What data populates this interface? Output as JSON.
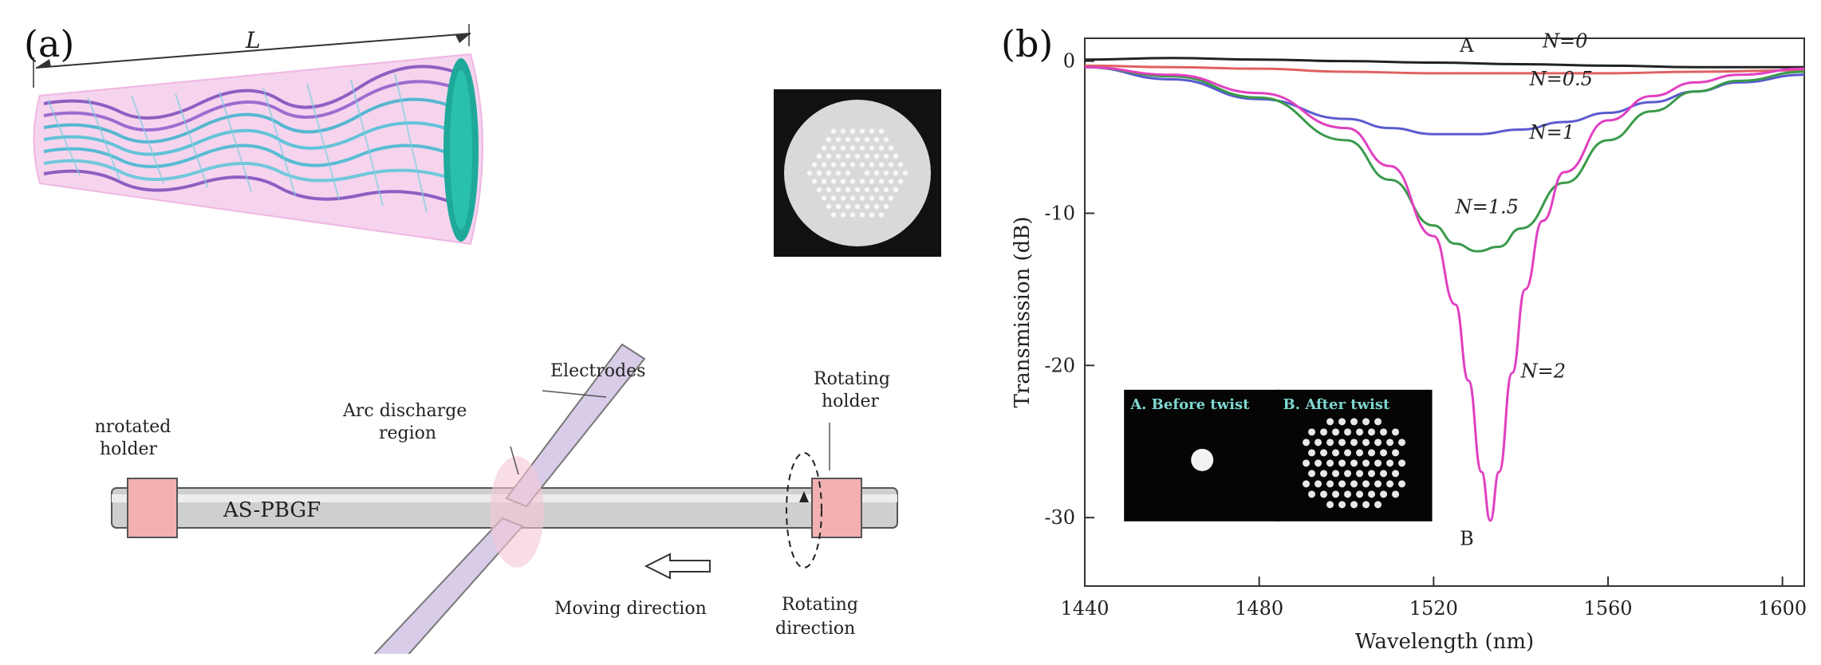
{
  "panel_a": {
    "label": "(a)",
    "length_label": "L",
    "labels": {
      "electrodes": "Electrodes",
      "unrotated_holder": [
        "Unrotated",
        "holder"
      ],
      "arc_region": [
        "Arc discharge",
        "region"
      ],
      "rotating_holder": [
        "Rotating",
        "holder"
      ],
      "fiber": "AS-PBGF",
      "moving": "Moving direction",
      "rotating_dir": [
        "Rotating",
        "direction"
      ]
    }
  },
  "panel_b": {
    "label": "(b)",
    "insets": [
      "A. Before twist",
      "B. After twist"
    ],
    "point_labels": [
      "A",
      "B"
    ]
  },
  "chart_data": {
    "type": "line",
    "xlabel": "Wavelength (nm)",
    "ylabel": "Transmission (dB)",
    "xlim": [
      1440,
      1605
    ],
    "ylim": [
      -34.5,
      1.5
    ],
    "xticks": [
      1440,
      1480,
      1520,
      1560,
      1600
    ],
    "yticks": [
      0,
      -10,
      -20,
      -30
    ],
    "grid": false,
    "series": [
      {
        "name": "N=0",
        "color": "#222222",
        "x": [
          1440,
          1460,
          1480,
          1500,
          1520,
          1540,
          1560,
          1580,
          1605
        ],
        "y": [
          0.1,
          0.2,
          0.1,
          0.0,
          -0.1,
          -0.2,
          -0.3,
          -0.4,
          -0.4
        ]
      },
      {
        "name": "N=0.5",
        "color": "#e06060",
        "x": [
          1440,
          1460,
          1480,
          1500,
          1520,
          1540,
          1560,
          1580,
          1605
        ],
        "y": [
          -0.3,
          -0.4,
          -0.5,
          -0.7,
          -0.8,
          -0.8,
          -0.8,
          -0.7,
          -0.6
        ]
      },
      {
        "name": "N=1",
        "color": "#5a5ad0",
        "x": [
          1440,
          1460,
          1480,
          1500,
          1510,
          1520,
          1530,
          1540,
          1550,
          1560,
          1570,
          1580,
          1590,
          1605
        ],
        "y": [
          -0.4,
          -1.2,
          -2.5,
          -3.8,
          -4.4,
          -4.8,
          -4.8,
          -4.5,
          -4.0,
          -3.4,
          -2.7,
          -2.0,
          -1.4,
          -0.9
        ]
      },
      {
        "name": "N=1.5",
        "color": "#3a9a4a",
        "x": [
          1440,
          1460,
          1480,
          1500,
          1510,
          1520,
          1525,
          1530,
          1535,
          1540,
          1550,
          1560,
          1570,
          1580,
          1590,
          1605
        ],
        "y": [
          -0.4,
          -1.0,
          -2.4,
          -5.2,
          -7.8,
          -10.8,
          -12.0,
          -12.5,
          -12.2,
          -11.0,
          -8.0,
          -5.2,
          -3.3,
          -2.0,
          -1.3,
          -0.7
        ]
      },
      {
        "name": "N=2",
        "color": "#e040c0",
        "x": [
          1440,
          1460,
          1480,
          1500,
          1510,
          1520,
          1525,
          1528,
          1531,
          1533,
          1535,
          1538,
          1541,
          1545,
          1550,
          1560,
          1570,
          1580,
          1590,
          1605
        ],
        "y": [
          -0.4,
          -0.9,
          -2.1,
          -4.4,
          -6.9,
          -11.5,
          -16.0,
          -21.0,
          -27.0,
          -30.2,
          -27.0,
          -20.5,
          -15.0,
          -10.5,
          -7.3,
          -3.9,
          -2.3,
          -1.4,
          -0.9,
          -0.5
        ]
      }
    ],
    "annotations": [
      "N=0",
      "N=0.5",
      "N=1",
      "N=1.5",
      "N=2"
    ]
  }
}
